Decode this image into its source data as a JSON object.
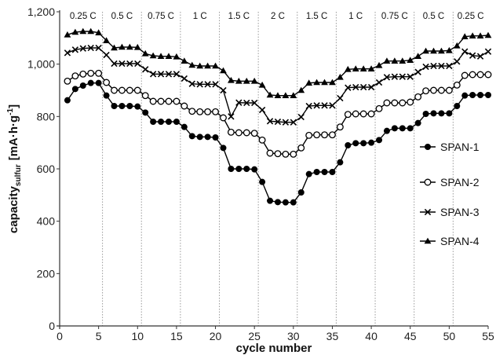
{
  "chart_data": {
    "type": "line",
    "xlabel": "cycle number",
    "ylabel": {
      "main": "capacity",
      "sub": "sulfur",
      "unit": "[mA·h·g",
      "sup": "-1",
      "close": "]"
    },
    "xlim": [
      0,
      55
    ],
    "ylim": [
      0,
      1200
    ],
    "x_ticks": [
      0,
      5,
      10,
      15,
      20,
      25,
      30,
      35,
      40,
      45,
      50,
      55
    ],
    "y_ticks": [
      0,
      200,
      400,
      600,
      800,
      1000,
      1200
    ],
    "y_tick_labels": [
      "0",
      "200",
      "400",
      "600",
      "800",
      "1,000",
      "1,200"
    ],
    "grid": "vertical-dotted",
    "legend_position": "right",
    "rate_boundaries": [
      5.5,
      10.5,
      15.5,
      20.5,
      25.5,
      30.5,
      35.5,
      40.5,
      45.5,
      50.5
    ],
    "rate_labels": [
      "0.25 C",
      "0.5 C",
      "0.75 C",
      "1 C",
      "1.5 C",
      "2 C",
      "1.5 C",
      "1 C",
      "0.75 C",
      "0.5 C",
      "0.25 C"
    ],
    "x": [
      1,
      2,
      3,
      4,
      5,
      6,
      7,
      8,
      9,
      10,
      11,
      12,
      13,
      14,
      15,
      16,
      17,
      18,
      19,
      20,
      21,
      22,
      23,
      24,
      25,
      26,
      27,
      28,
      29,
      30,
      31,
      32,
      33,
      34,
      35,
      36,
      37,
      38,
      39,
      40,
      41,
      42,
      43,
      44,
      45,
      46,
      47,
      48,
      49,
      50,
      51,
      52,
      53,
      54,
      55
    ],
    "series": [
      {
        "name": "SPAN-1",
        "marker": "filled-circle",
        "values": [
          862,
          905,
          918,
          928,
          928,
          880,
          840,
          840,
          840,
          838,
          815,
          780,
          780,
          780,
          780,
          760,
          725,
          722,
          722,
          720,
          680,
          600,
          600,
          600,
          598,
          550,
          478,
          473,
          472,
          472,
          510,
          580,
          588,
          588,
          588,
          625,
          690,
          698,
          698,
          700,
          710,
          745,
          755,
          755,
          755,
          775,
          810,
          812,
          812,
          812,
          840,
          880,
          882,
          882,
          882
        ]
      },
      {
        "name": "SPAN-2",
        "marker": "open-circle",
        "values": [
          935,
          955,
          962,
          965,
          965,
          930,
          900,
          900,
          900,
          900,
          880,
          858,
          858,
          858,
          858,
          840,
          820,
          818,
          818,
          818,
          795,
          740,
          738,
          738,
          736,
          710,
          660,
          658,
          656,
          656,
          680,
          728,
          730,
          730,
          730,
          760,
          808,
          810,
          810,
          810,
          830,
          852,
          852,
          852,
          855,
          875,
          898,
          900,
          900,
          900,
          920,
          957,
          960,
          960,
          960
        ]
      },
      {
        "name": "SPAN-3",
        "marker": "x",
        "values": [
          1043,
          1055,
          1060,
          1062,
          1062,
          1035,
          1002,
          1002,
          1002,
          1002,
          980,
          962,
          962,
          962,
          962,
          945,
          925,
          923,
          923,
          923,
          900,
          800,
          853,
          852,
          852,
          825,
          782,
          780,
          778,
          778,
          798,
          840,
          842,
          842,
          842,
          870,
          910,
          912,
          912,
          912,
          930,
          950,
          952,
          952,
          952,
          970,
          990,
          993,
          993,
          993,
          1010,
          1048,
          1033,
          1030,
          1048
        ]
      },
      {
        "name": "SPAN-4",
        "marker": "filled-triangle",
        "values": [
          1112,
          1122,
          1125,
          1125,
          1120,
          1090,
          1062,
          1065,
          1065,
          1064,
          1040,
          1032,
          1030,
          1030,
          1028,
          1012,
          996,
          993,
          993,
          993,
          975,
          938,
          935,
          935,
          935,
          920,
          882,
          880,
          880,
          880,
          900,
          928,
          930,
          930,
          930,
          950,
          980,
          982,
          982,
          982,
          995,
          1012,
          1012,
          1012,
          1015,
          1030,
          1050,
          1050,
          1050,
          1052,
          1070,
          1105,
          1108,
          1108,
          1110
        ]
      }
    ]
  }
}
